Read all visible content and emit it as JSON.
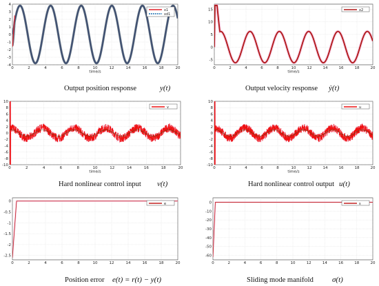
{
  "chart_data": [
    {
      "type": "line",
      "caption": "Output position response",
      "caption_math": "y(t)",
      "xlabel": "time/s",
      "xlim": [
        0,
        20
      ],
      "ylim": [
        -4,
        4
      ],
      "xticks": [
        0,
        2,
        4,
        6,
        8,
        10,
        12,
        14,
        16,
        18,
        20
      ],
      "yticks": [
        -4,
        -3,
        -2,
        -1,
        0,
        1,
        2,
        3,
        4
      ],
      "legend": "top-right",
      "grid": true,
      "series": [
        {
          "name": "x1",
          "color": "#e0202a",
          "kind": "position_response"
        },
        {
          "name": "xd1",
          "color": "#1a6fb0",
          "dashed": true,
          "kind": "position_reference"
        }
      ],
      "signal": {
        "amplitude": 3.8,
        "period": 3.7
      }
    },
    {
      "type": "line",
      "caption": "Output velocity response",
      "caption_math": "ẏ(t)",
      "xlabel": "time/s",
      "xlim": [
        0,
        20
      ],
      "ylim": [
        -7,
        17
      ],
      "xticks": [
        0,
        2,
        4,
        6,
        8,
        10,
        12,
        14,
        16,
        18,
        20
      ],
      "yticks": [
        -5,
        0,
        5,
        10,
        15
      ],
      "legend": "top-right",
      "grid": true,
      "series": [
        {
          "name": "x2",
          "color": "#b01818",
          "kind": "velocity"
        }
      ],
      "signal": {
        "amplitude": 6.2,
        "period": 3.7,
        "peak": 16.5
      }
    },
    {
      "type": "line",
      "caption": "Hard nonlinear control input",
      "caption_math": "v(t)",
      "xlabel": "time/s",
      "xlim": [
        0,
        20
      ],
      "ylim": [
        -10,
        10
      ],
      "xticks": [
        0,
        2,
        4,
        6,
        8,
        10,
        12,
        14,
        16,
        18,
        20
      ],
      "yticks": [
        -10,
        -8,
        -6,
        -4,
        -2,
        0,
        2,
        4,
        6,
        8,
        10
      ],
      "legend": "top-right",
      "grid": true,
      "series": [
        {
          "name": "v",
          "color": "#ee1111",
          "kind": "control"
        }
      ],
      "signal": {
        "amplitude": 1.6,
        "chatter": 1.3,
        "period": 3.7
      }
    },
    {
      "type": "line",
      "caption": "Hard nonlinear control output",
      "caption_math": "u(t)",
      "xlabel": "time/s",
      "xlim": [
        0,
        20
      ],
      "ylim": [
        -10,
        10
      ],
      "xticks": [
        0,
        2,
        4,
        6,
        8,
        10,
        12,
        14,
        16,
        18,
        20
      ],
      "yticks": [
        -10,
        -8,
        -6,
        -4,
        -2,
        0,
        2,
        4,
        6,
        8,
        10
      ],
      "legend": "top-right",
      "grid": true,
      "series": [
        {
          "name": "u",
          "color": "#ee1111",
          "kind": "control"
        }
      ],
      "signal": {
        "amplitude": 1.6,
        "chatter": 1.3,
        "period": 3.7
      }
    },
    {
      "type": "line",
      "caption": "Position error",
      "caption_math": "e(t) = r(t) − y(t)",
      "xlabel": "",
      "xlim": [
        0,
        20
      ],
      "ylim": [
        -2.7,
        0.15
      ],
      "xticks": [
        0,
        2,
        4,
        6,
        8,
        10,
        12,
        14,
        16,
        18,
        20
      ],
      "yticks": [
        -2.5,
        -2,
        -1.5,
        -1,
        -0.5,
        0
      ],
      "legend": "top-right",
      "grid": true,
      "series": [
        {
          "name": "e",
          "color": "#c02020",
          "kind": "error"
        }
      ],
      "signal": {
        "start": -2.6,
        "settle_time": 0.5,
        "final": 0
      }
    },
    {
      "type": "line",
      "caption": "Sliding mode manifold",
      "caption_math": "σ(t)",
      "xlabel": "",
      "xlim": [
        0,
        20
      ],
      "ylim": [
        -65,
        5
      ],
      "xticks": [
        0,
        2,
        4,
        6,
        8,
        10,
        12,
        14,
        16,
        18,
        20
      ],
      "yticks": [
        -60,
        -50,
        -40,
        -30,
        -20,
        -10,
        0
      ],
      "legend": "top-right",
      "grid": true,
      "series": [
        {
          "name": "s",
          "color": "#c02020",
          "kind": "manifold"
        }
      ],
      "signal": {
        "start": -62,
        "settle_time": 0.3,
        "final": 0
      }
    }
  ]
}
